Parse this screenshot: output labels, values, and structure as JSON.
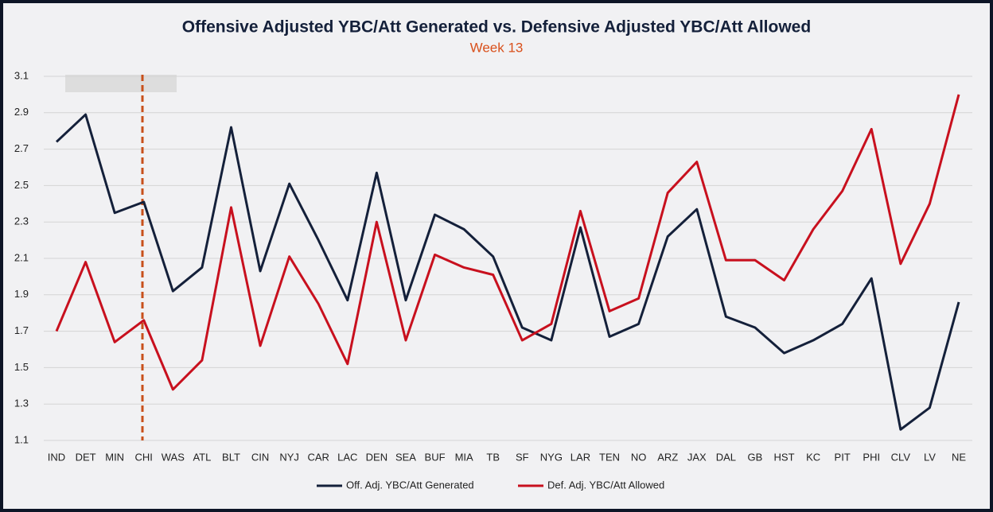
{
  "chart_data": {
    "type": "line",
    "title": "Offensive Adjusted YBC/Att Generated vs. Defensive Adjusted YBC/Att Allowed",
    "subtitle": "Week 13",
    "categories": [
      "IND",
      "DET",
      "MIN",
      "CHI",
      "WAS",
      "ATL",
      "BLT",
      "CIN",
      "NYJ",
      "CAR",
      "LAC",
      "DEN",
      "SEA",
      "BUF",
      "MIA",
      "TB",
      "SF",
      "NYG",
      "LAR",
      "TEN",
      "NO",
      "ARZ",
      "JAX",
      "DAL",
      "GB",
      "HST",
      "KC",
      "PIT",
      "PHI",
      "CLV",
      "LV",
      "NE"
    ],
    "series": [
      {
        "name": "Off. Adj. YBC/Att Generated",
        "color": "#14203a",
        "values": [
          2.74,
          2.89,
          2.35,
          2.41,
          1.92,
          2.05,
          2.82,
          2.03,
          2.51,
          2.2,
          1.87,
          2.57,
          1.87,
          2.34,
          2.26,
          2.11,
          1.72,
          1.65,
          2.27,
          1.67,
          1.74,
          2.22,
          2.37,
          1.78,
          1.72,
          1.58,
          1.65,
          1.74,
          1.99,
          1.16,
          1.28,
          1.86
        ]
      },
      {
        "name": "Def. Adj. YBC/Att Allowed",
        "color": "#c8101e",
        "values": [
          1.7,
          2.08,
          1.64,
          1.76,
          1.38,
          1.54,
          2.38,
          1.62,
          2.11,
          1.85,
          1.52,
          2.3,
          1.65,
          2.12,
          2.05,
          2.01,
          1.65,
          1.74,
          2.36,
          1.81,
          1.88,
          2.46,
          2.63,
          2.09,
          2.09,
          1.98,
          2.26,
          2.47,
          2.81,
          2.07,
          2.4,
          3.0
        ]
      }
    ],
    "ylim": [
      1.1,
      3.1
    ],
    "yticks": [
      1.1,
      1.3,
      1.5,
      1.7,
      1.9,
      2.1,
      2.3,
      2.5,
      2.7,
      2.9,
      3.1
    ],
    "grid": true
  }
}
